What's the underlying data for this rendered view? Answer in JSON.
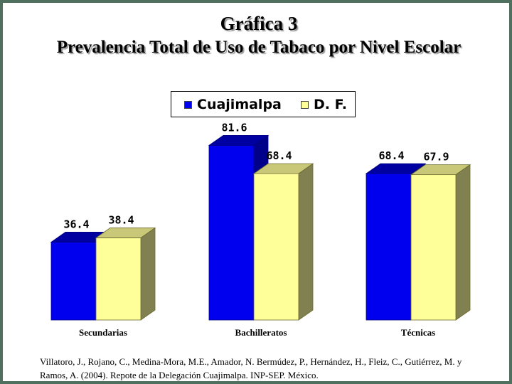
{
  "title": {
    "line1": "Gráfica 3",
    "line2": "Prevalencia Total de Uso de Tabaco por Nivel Escolar"
  },
  "legend": {
    "items": [
      "Cuajimalpa",
      "D. F."
    ]
  },
  "colors": {
    "series1_front": "#0000ee",
    "series1_top": "#0000a0",
    "series1_side": "#00008a",
    "series2_front": "#ffff99",
    "series2_top": "#c8c878",
    "series2_side": "#808050",
    "frame": "#4f6f5f"
  },
  "chart_data": {
    "type": "bar",
    "title": "Prevalencia Total de Uso de Tabaco por Nivel Escolar",
    "categories": [
      "Secundarias",
      "Bachilleratos",
      "Técnicas"
    ],
    "series": [
      {
        "name": "Cuajimalpa",
        "values": [
          36.4,
          81.6,
          68.4
        ],
        "labels": [
          "36.4",
          "81.6",
          "68.4"
        ]
      },
      {
        "name": "D. F.",
        "values": [
          38.4,
          68.4,
          67.9
        ],
        "labels": [
          "38.4",
          "68.4",
          "67.9"
        ]
      }
    ],
    "ylim": [
      0,
      90
    ],
    "grid": false,
    "legend_position": "top-center",
    "three_d": true
  },
  "source": "Villatoro, J., Rojano, C., Medina-Mora, M.E., Amador, N. Bermúdez, P., Hernández, H., Fleiz, C., Gutiérrez, M. y Ramos, A. (2004). Repote de la Delegación Cuajimalpa. INP-SEP. México."
}
